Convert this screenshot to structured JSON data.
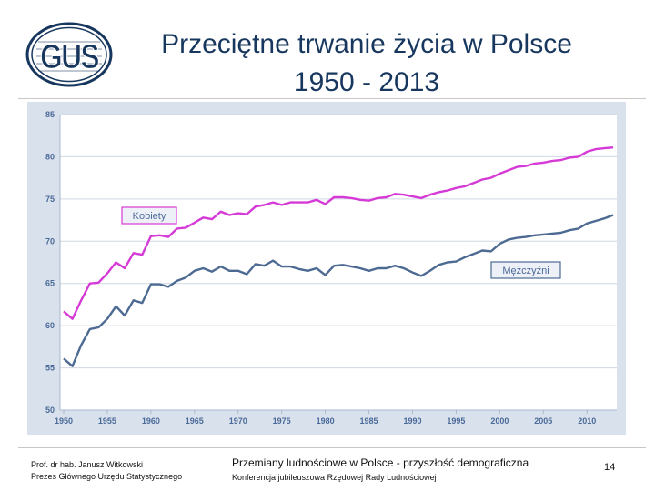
{
  "logo": {
    "text": "GUS",
    "colors": {
      "primary": "#17375e",
      "background": "#ffffff"
    }
  },
  "title": {
    "line1": "Przeciętne trwanie życia w Polsce",
    "line2": "1950 - 2013"
  },
  "footer": {
    "author_line1": "Prof. dr hab. Janusz Witkowski",
    "author_line2": "Prezes Głównego Urzędu Statystycznego",
    "conference_line1": "Przemiany ludnościowe w Polsce -  przyszłość demograficzna",
    "conference_line2": "Konferencja jubileuszowa Rzędowej Rady Ludnościowej",
    "page_number": "14"
  },
  "chart_data": {
    "type": "line",
    "title": "",
    "xlabel": "",
    "ylabel": "",
    "xlim": [
      1950,
      2013
    ],
    "ylim": [
      50,
      85
    ],
    "x_ticks": [
      1950,
      1955,
      1960,
      1965,
      1970,
      1975,
      1980,
      1985,
      1990,
      1995,
      2000,
      2005,
      2010
    ],
    "y_ticks": [
      50,
      55,
      60,
      65,
      70,
      75,
      80,
      85
    ],
    "grid": true,
    "x": [
      1950,
      1951,
      1952,
      1953,
      1954,
      1955,
      1956,
      1957,
      1958,
      1959,
      1960,
      1961,
      1962,
      1963,
      1964,
      1965,
      1966,
      1967,
      1968,
      1969,
      1970,
      1971,
      1972,
      1973,
      1974,
      1975,
      1976,
      1977,
      1978,
      1979,
      1980,
      1981,
      1982,
      1983,
      1984,
      1985,
      1986,
      1987,
      1988,
      1989,
      1990,
      1991,
      1992,
      1993,
      1994,
      1995,
      1996,
      1997,
      1998,
      1999,
      2000,
      2001,
      2002,
      2003,
      2004,
      2005,
      2006,
      2007,
      2008,
      2009,
      2010,
      2011,
      2012,
      2013
    ],
    "series": [
      {
        "name": "Kobiety",
        "color": "#d63ad6",
        "legend_position": "left-middle",
        "values": [
          61.7,
          60.8,
          63.0,
          65.0,
          65.1,
          66.2,
          67.5,
          66.8,
          68.6,
          68.4,
          70.6,
          70.7,
          70.5,
          71.5,
          71.6,
          72.2,
          72.8,
          72.6,
          73.5,
          73.1,
          73.3,
          73.2,
          74.1,
          74.3,
          74.6,
          74.3,
          74.6,
          74.6,
          74.6,
          74.9,
          74.4,
          75.2,
          75.2,
          75.1,
          74.9,
          74.8,
          75.1,
          75.2,
          75.6,
          75.5,
          75.3,
          75.1,
          75.5,
          75.8,
          76.0,
          76.3,
          76.5,
          76.9,
          77.3,
          77.5,
          78.0,
          78.4,
          78.8,
          78.9,
          79.2,
          79.3,
          79.5,
          79.6,
          79.9,
          80.0,
          80.6,
          80.9,
          81.0,
          81.1
        ]
      },
      {
        "name": "Mężczyźni",
        "color": "#4d6a93",
        "legend_position": "right-middle",
        "values": [
          56.1,
          55.2,
          57.7,
          59.6,
          59.8,
          60.8,
          62.3,
          61.2,
          63.0,
          62.7,
          64.9,
          64.9,
          64.6,
          65.3,
          65.7,
          66.5,
          66.8,
          66.4,
          67.0,
          66.5,
          66.5,
          66.1,
          67.3,
          67.1,
          67.7,
          67.0,
          67.0,
          66.7,
          66.5,
          66.8,
          66.0,
          67.1,
          67.2,
          67.0,
          66.8,
          66.5,
          66.8,
          66.8,
          67.1,
          66.8,
          66.3,
          65.9,
          66.5,
          67.2,
          67.5,
          67.6,
          68.1,
          68.5,
          68.9,
          68.8,
          69.7,
          70.2,
          70.4,
          70.5,
          70.7,
          70.8,
          70.9,
          71.0,
          71.3,
          71.5,
          72.1,
          72.4,
          72.7,
          73.1
        ]
      }
    ]
  }
}
